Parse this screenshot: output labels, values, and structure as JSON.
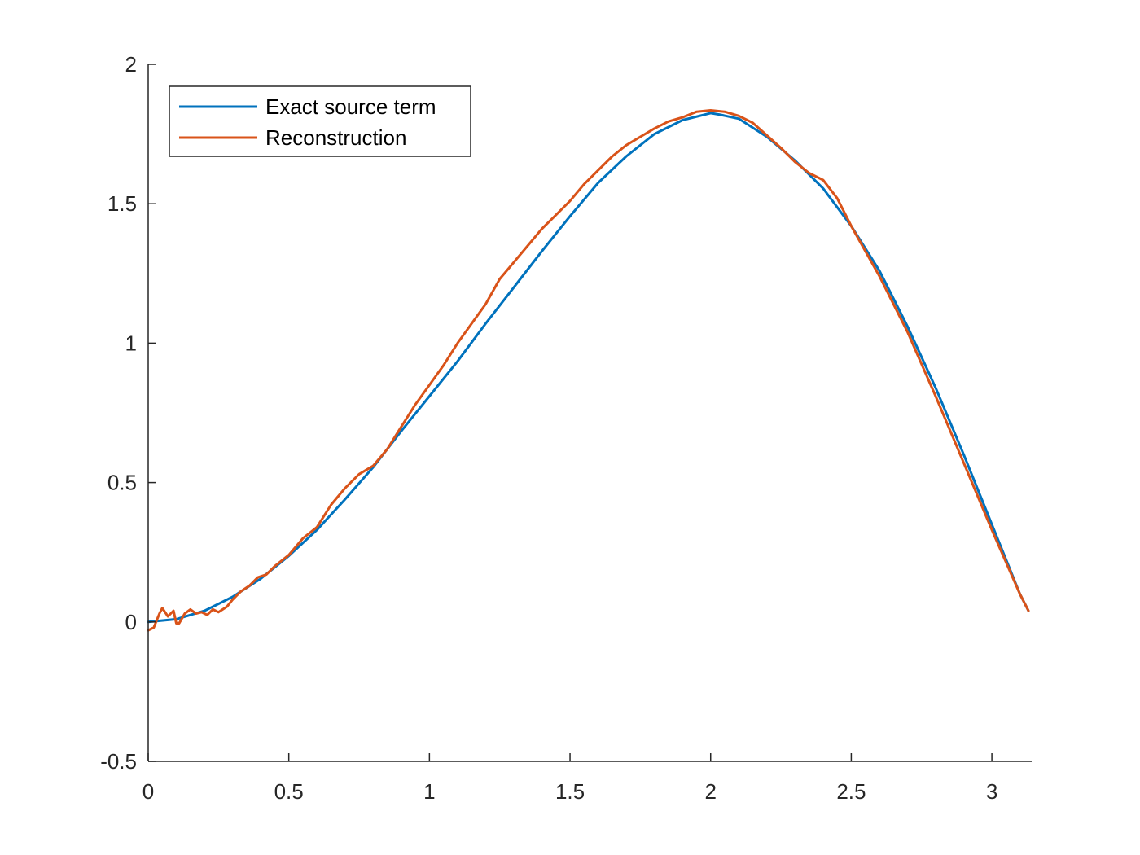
{
  "chart_data": {
    "type": "line",
    "title": "",
    "xlabel": "",
    "ylabel": "",
    "xlim": [
      0,
      3.1416
    ],
    "ylim": [
      -0.5,
      2
    ],
    "xticks": [
      0,
      0.5,
      1,
      1.5,
      2,
      2.5,
      3
    ],
    "xtick_labels": [
      "0",
      "0.5",
      "1",
      "1.5",
      "2",
      "2.5",
      "3"
    ],
    "yticks": [
      -0.5,
      0,
      0.5,
      1,
      1.5,
      2
    ],
    "ytick_labels": [
      "-0.5",
      "0",
      "0.5",
      "1",
      "1.5",
      "2"
    ],
    "grid": false,
    "legend_position": "top-left",
    "series": [
      {
        "name": "Exact source term",
        "color": "#0072BD",
        "x": [
          0,
          0.1,
          0.2,
          0.3,
          0.4,
          0.5,
          0.6,
          0.7,
          0.8,
          0.9,
          1.0,
          1.1,
          1.2,
          1.3,
          1.4,
          1.5,
          1.6,
          1.7,
          1.8,
          1.9,
          2.0,
          2.03,
          2.1,
          2.2,
          2.3,
          2.4,
          2.5,
          2.6,
          2.7,
          2.8,
          2.9,
          3.0,
          3.1,
          3.13
        ],
        "y": [
          0,
          0.01,
          0.04,
          0.09,
          0.155,
          0.237,
          0.33,
          0.44,
          0.555,
          0.685,
          0.81,
          0.935,
          1.07,
          1.2,
          1.33,
          1.455,
          1.575,
          1.67,
          1.75,
          1.8,
          1.825,
          1.82,
          1.805,
          1.74,
          1.655,
          1.555,
          1.42,
          1.26,
          1.06,
          0.84,
          0.6,
          0.35,
          0.1,
          0.04
        ]
      },
      {
        "name": "Reconstruction",
        "color": "#D95319",
        "x": [
          0,
          0.02,
          0.04,
          0.05,
          0.07,
          0.09,
          0.1,
          0.11,
          0.13,
          0.15,
          0.17,
          0.19,
          0.21,
          0.23,
          0.25,
          0.28,
          0.3,
          0.33,
          0.36,
          0.39,
          0.42,
          0.45,
          0.5,
          0.55,
          0.6,
          0.65,
          0.7,
          0.75,
          0.8,
          0.85,
          0.9,
          0.95,
          1.0,
          1.05,
          1.1,
          1.15,
          1.2,
          1.25,
          1.3,
          1.35,
          1.4,
          1.45,
          1.5,
          1.55,
          1.6,
          1.65,
          1.7,
          1.75,
          1.8,
          1.85,
          1.9,
          1.95,
          2.0,
          2.05,
          2.1,
          2.15,
          2.2,
          2.25,
          2.3,
          2.35,
          2.4,
          2.45,
          2.5,
          2.6,
          2.7,
          2.8,
          2.9,
          3.0,
          3.1,
          3.13
        ],
        "y": [
          -0.03,
          -0.02,
          0.03,
          0.05,
          0.02,
          0.04,
          -0.005,
          -0.005,
          0.03,
          0.045,
          0.03,
          0.035,
          0.025,
          0.045,
          0.035,
          0.055,
          0.08,
          0.11,
          0.13,
          0.16,
          0.17,
          0.2,
          0.24,
          0.3,
          0.34,
          0.42,
          0.48,
          0.53,
          0.56,
          0.62,
          0.7,
          0.78,
          0.85,
          0.92,
          1.0,
          1.07,
          1.14,
          1.23,
          1.29,
          1.35,
          1.41,
          1.46,
          1.51,
          1.57,
          1.62,
          1.67,
          1.71,
          1.74,
          1.77,
          1.795,
          1.81,
          1.83,
          1.835,
          1.83,
          1.815,
          1.79,
          1.745,
          1.7,
          1.65,
          1.61,
          1.585,
          1.52,
          1.42,
          1.24,
          1.04,
          0.81,
          0.57,
          0.33,
          0.1,
          0.04
        ]
      }
    ]
  }
}
